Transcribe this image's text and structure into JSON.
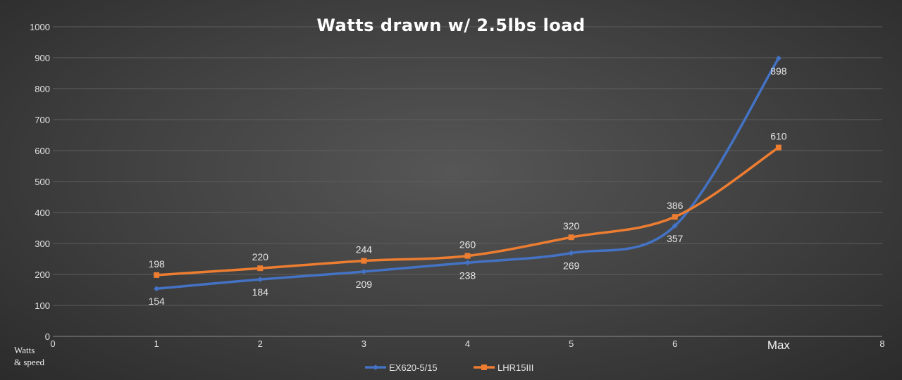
{
  "chart_data": {
    "type": "line",
    "title": "Watts drawn w/ 2.5lbs load",
    "ylabel": "Watts\n& speed",
    "xlim": [
      0,
      8
    ],
    "ylim": [
      0,
      1000
    ],
    "x_ticks": [
      "0",
      "1",
      "2",
      "3",
      "4",
      "5",
      "6",
      "Max",
      "8"
    ],
    "y_ticks": [
      0,
      100,
      200,
      300,
      400,
      500,
      600,
      700,
      800,
      900,
      1000
    ],
    "grid": true,
    "smooth": true,
    "legend_position": "bottom",
    "x": [
      1,
      2,
      3,
      4,
      5,
      6,
      7
    ],
    "series": [
      {
        "name": "EX620-5/15",
        "color": "#4472c4",
        "marker": "diamond",
        "values": [
          154,
          184,
          209,
          238,
          269,
          357,
          898
        ]
      },
      {
        "name": "LHR15III",
        "color": "#ed7d31",
        "marker": "square",
        "values": [
          198,
          220,
          244,
          260,
          320,
          386,
          610
        ]
      }
    ]
  }
}
